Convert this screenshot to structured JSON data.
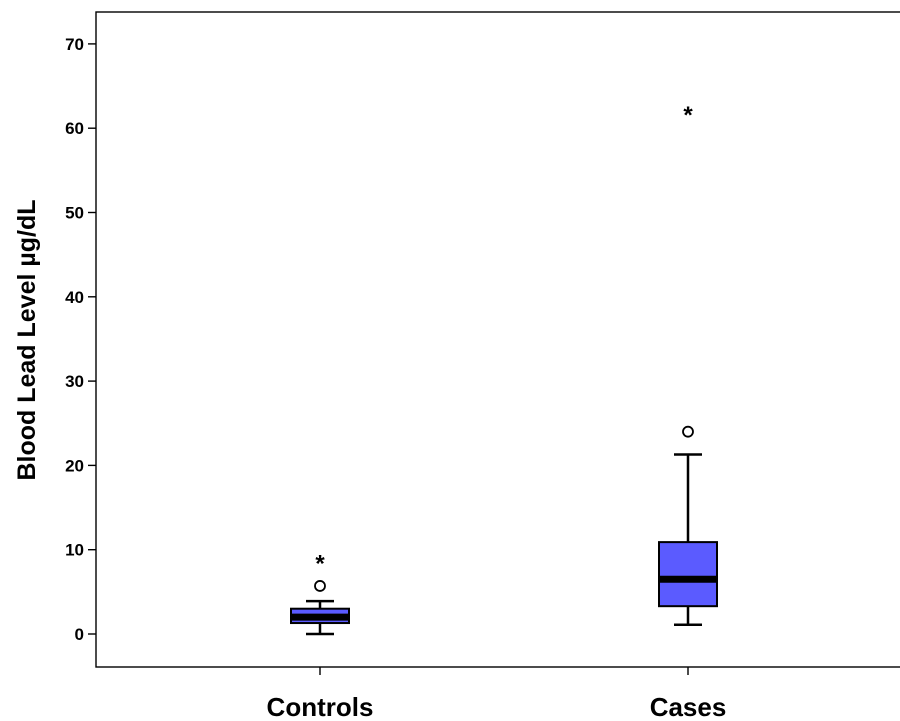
{
  "chart_data": {
    "type": "box",
    "title": "",
    "xlabel": "",
    "ylabel": "Blood Lead Level µg/dL",
    "ylim": [
      -4,
      74
    ],
    "yticks": [
      0,
      10,
      20,
      30,
      40,
      50,
      60,
      70
    ],
    "grid": false,
    "box_color": "#5b5bff",
    "median_color": "#000000",
    "categories": [
      "Controls",
      "Cases"
    ],
    "boxes": [
      {
        "category": "Controls",
        "whisker_low": 0,
        "q1": 1.3,
        "median": 2.0,
        "q3": 3.0,
        "whisker_high": 3.9,
        "outliers": [
          5.7
        ],
        "extremes": [
          8.6
        ]
      },
      {
        "category": "Cases",
        "whisker_low": 1.1,
        "q1": 3.3,
        "median": 6.5,
        "q3": 10.9,
        "whisker_high": 21.3,
        "outliers": [
          24.0
        ],
        "extremes": [
          61.8
        ]
      }
    ]
  }
}
